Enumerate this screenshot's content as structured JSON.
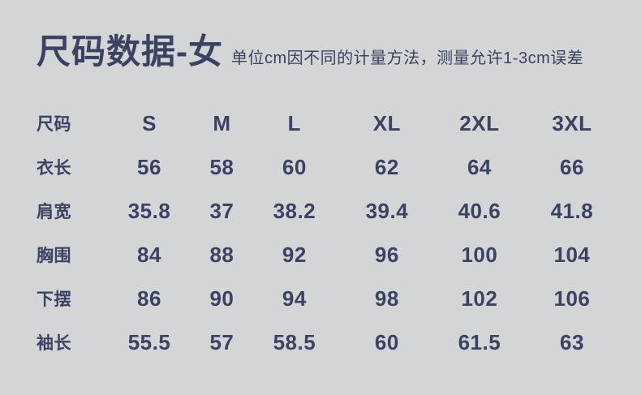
{
  "page": {
    "title": "尺码数据-女",
    "subtitle": "单位cm因不同的计量方法，测量允许1-3cm误差",
    "colors": {
      "background": "#d4d5d7",
      "text": "#3b4262"
    }
  },
  "chart_data": {
    "type": "table",
    "columns": [
      "尺码",
      "S",
      "M",
      "L",
      "XL",
      "2XL",
      "3XL"
    ],
    "rows": [
      {
        "label": "衣长",
        "values": [
          "56",
          "58",
          "60",
          "62",
          "64",
          "66"
        ]
      },
      {
        "label": "肩宽",
        "values": [
          "35.8",
          "37",
          "38.2",
          "39.4",
          "40.6",
          "41.8"
        ]
      },
      {
        "label": "胸围",
        "values": [
          "84",
          "88",
          "92",
          "96",
          "100",
          "104"
        ]
      },
      {
        "label": "下摆",
        "values": [
          "86",
          "90",
          "94",
          "98",
          "102",
          "106"
        ]
      },
      {
        "label": "袖长",
        "values": [
          "55.5",
          "57",
          "58.5",
          "60",
          "61.5",
          "63"
        ]
      }
    ]
  }
}
